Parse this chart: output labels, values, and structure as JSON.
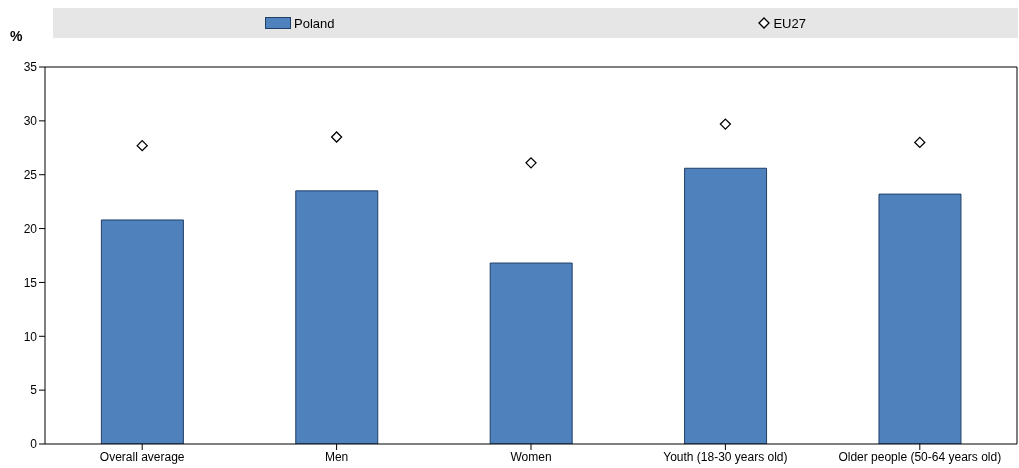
{
  "chart_data": {
    "type": "bar",
    "ylabel": "%",
    "categories": [
      "Overall average",
      "Men",
      "Women",
      "Youth (18-30 years old)",
      "Older people (50-64 years old)"
    ],
    "series": [
      {
        "name": "Poland",
        "color": "#4f81bd",
        "values": [
          20.8,
          23.5,
          16.8,
          25.6,
          23.2
        ]
      },
      {
        "name": "EU27",
        "type": "scatter",
        "color": "#000000",
        "marker": "diamond",
        "values": [
          27.7,
          28.5,
          26.1,
          29.7,
          28.0
        ]
      }
    ],
    "ylim": [
      0,
      35
    ],
    "yticks": [
      0,
      5,
      10,
      15,
      20,
      25,
      30,
      35
    ],
    "grid": false,
    "legend": "top"
  }
}
